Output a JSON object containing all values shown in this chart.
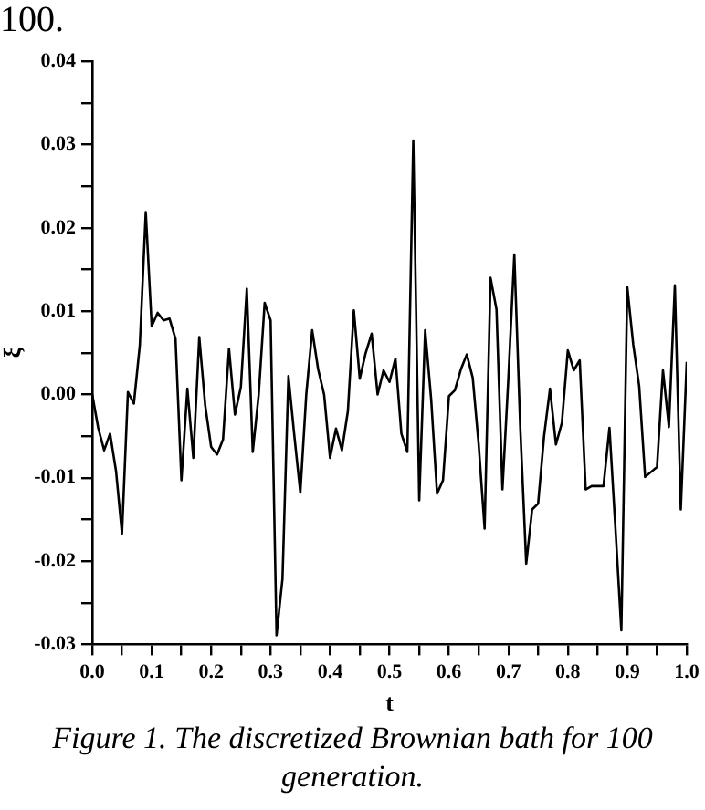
{
  "chart_data": {
    "type": "line",
    "xlabel": "t",
    "ylabel": "ξ",
    "annotations": [
      "100.",
      "Figure 1. The discretized Brownian bath for 100 generation."
    ],
    "x": [
      0,
      0.01,
      0.02,
      0.03,
      0.04,
      0.05,
      0.06,
      0.07,
      0.08,
      0.09,
      0.1,
      0.11,
      0.12,
      0.13,
      0.14,
      0.15,
      0.16,
      0.17,
      0.18,
      0.19,
      0.2,
      0.21,
      0.22,
      0.23,
      0.24,
      0.25,
      0.26,
      0.27,
      0.28,
      0.29,
      0.3,
      0.31,
      0.32,
      0.33,
      0.34,
      0.35,
      0.36,
      0.37,
      0.38,
      0.39,
      0.4,
      0.41,
      0.42,
      0.43,
      0.44,
      0.45,
      0.46,
      0.47,
      0.48,
      0.49,
      0.5,
      0.51,
      0.52,
      0.53,
      0.54,
      0.55,
      0.56,
      0.57,
      0.58,
      0.59,
      0.6,
      0.61,
      0.62,
      0.63,
      0.64,
      0.65,
      0.66,
      0.67,
      0.68,
      0.69,
      0.7,
      0.71,
      0.72,
      0.73,
      0.74,
      0.75,
      0.76,
      0.77,
      0.78,
      0.79,
      0.8,
      0.81,
      0.82,
      0.83,
      0.84,
      0.85,
      0.86,
      0.87,
      0.88,
      0.89,
      0.9,
      0.91,
      0.92,
      0.93,
      0.94,
      0.95,
      0.96,
      0.97,
      0.98,
      0.99,
      1.0
    ],
    "series": [
      {
        "color": "#000000",
        "values": [
          0,
          -0.004,
          -0.0067,
          -0.0047,
          -0.0092,
          -0.0167,
          0.0003,
          -0.0011,
          0.0059,
          0.0219,
          0.0082,
          0.0098,
          0.0089,
          0.0091,
          0.0067,
          -0.0103,
          0.0007,
          -0.0076,
          0.0069,
          -0.0013,
          -0.0063,
          -0.0072,
          -0.0054,
          0.0055,
          -0.0024,
          0.0009,
          0.0127,
          -0.0069,
          0,
          0.011,
          0.0089,
          -0.0289,
          -0.0221,
          0.0022,
          -0.005,
          -0.0118,
          0,
          0.0077,
          0.003,
          0,
          -0.0076,
          -0.0041,
          -0.0067,
          -0.002,
          0.0101,
          0.0019,
          0.005,
          0.0073,
          0,
          0.0029,
          0.0015,
          0.0043,
          -0.0047,
          -0.0069,
          0.0305,
          -0.0127,
          0.0077,
          -0.0005,
          -0.0119,
          -0.0103,
          -0.0002,
          0.0005,
          0.003,
          0.0048,
          0.002,
          -0.006,
          -0.0161,
          0.014,
          0.0102,
          -0.0114,
          0.002,
          0.0168,
          -0.004,
          -0.0203,
          -0.0138,
          -0.0131,
          -0.005,
          0.0007,
          -0.006,
          -0.0034,
          0.0053,
          0.0029,
          0.0041,
          -0.0114,
          -0.011,
          -0.011,
          -0.011,
          -0.004,
          -0.016,
          -0.0283,
          0.0129,
          0.006,
          0.001,
          -0.0099,
          -0.0093,
          -0.0087,
          0.0029,
          -0.0039,
          0.0131,
          -0.0138,
          0.0039
        ]
      }
    ],
    "xlim": [
      0,
      1
    ],
    "xticks": [
      {
        "value": 0,
        "label": "0.0"
      },
      {
        "value": 0.05,
        "label": null
      },
      {
        "value": 0.1,
        "label": "0.1"
      },
      {
        "value": 0.15,
        "label": null
      },
      {
        "value": 0.2,
        "label": "0.2"
      },
      {
        "value": 0.25,
        "label": null
      },
      {
        "value": 0.3,
        "label": "0.3"
      },
      {
        "value": 0.35,
        "label": null
      },
      {
        "value": 0.4,
        "label": "0.4"
      },
      {
        "value": 0.45,
        "label": null
      },
      {
        "value": 0.5,
        "label": "0.5"
      },
      {
        "value": 0.55,
        "label": null
      },
      {
        "value": 0.6,
        "label": "0.6"
      },
      {
        "value": 0.65,
        "label": null
      },
      {
        "value": 0.7,
        "label": "0.7"
      },
      {
        "value": 0.75,
        "label": null
      },
      {
        "value": 0.8,
        "label": "0.8"
      },
      {
        "value": 0.85,
        "label": null
      },
      {
        "value": 0.9,
        "label": "0.9"
      },
      {
        "value": 0.95,
        "label": null
      },
      {
        "value": 1,
        "label": "1.0"
      }
    ],
    "ylim": [
      -0.03,
      0.04
    ],
    "yticks": [
      {
        "value": -0.03,
        "label": "-0.03"
      },
      {
        "value": -0.025,
        "label": null
      },
      {
        "value": -0.02,
        "label": "-0.02"
      },
      {
        "value": -0.015,
        "label": null
      },
      {
        "value": -0.01,
        "label": "-0.01"
      },
      {
        "value": -0.005,
        "label": null
      },
      {
        "value": 0,
        "label": "0.00"
      },
      {
        "value": 0.005,
        "label": null
      },
      {
        "value": 0.01,
        "label": "0.01"
      },
      {
        "value": 0.015,
        "label": null
      },
      {
        "value": 0.02,
        "label": "0.02"
      },
      {
        "value": 0.025,
        "label": null
      },
      {
        "value": 0.03,
        "label": "0.03"
      },
      {
        "value": 0.035,
        "label": null
      },
      {
        "value": 0.04,
        "label": "0.04"
      }
    ],
    "grid": false,
    "legend": false,
    "marker": "none",
    "line_style": "solid"
  }
}
